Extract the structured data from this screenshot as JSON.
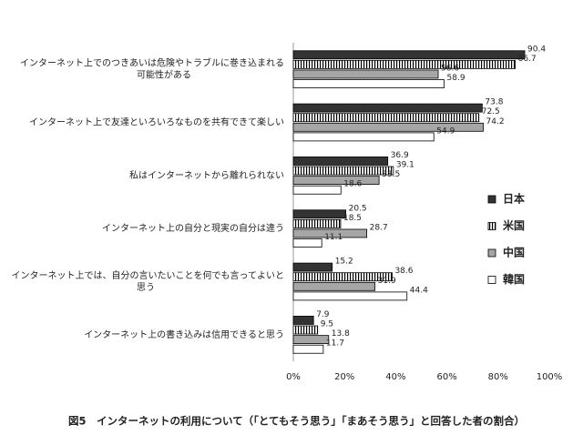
{
  "chart_data": {
    "type": "hbar",
    "title": "図5　インターネットの利用について（「とてもそう思う」「まあそう思う」と回答した者の割合）",
    "categories": [
      "インターネット上でのつきあいは危険やトラブルに巻き込まれる\n可能性がある",
      "インターネット上で友達といろいろなものを共有できて楽しい",
      "私はインターネットから離れられない",
      "インターネット上の自分と現実の自分は違う",
      "インターネット上では、自分の言いたいことを何でも言ってよいと\n思う",
      "インターネット上の書き込みは信用できると思う"
    ],
    "series": [
      {
        "name": "日本",
        "color": "#333333",
        "values": [
          90.4,
          73.8,
          36.9,
          20.5,
          15.2,
          7.9
        ]
      },
      {
        "name": "米国",
        "color": "#ffffff",
        "hatch": "vertical",
        "values": [
          86.7,
          72.5,
          39.1,
          18.5,
          38.6,
          9.5
        ]
      },
      {
        "name": "中国",
        "color": "#a6a6a6",
        "values": [
          56.6,
          74.2,
          33.5,
          28.7,
          31.9,
          13.8
        ]
      },
      {
        "name": "韓国",
        "color": "#ffffff",
        "values": [
          58.9,
          54.9,
          18.6,
          11.1,
          44.4,
          11.7
        ]
      }
    ],
    "xlim": [
      0,
      100
    ],
    "xticks": [
      {
        "value": 0,
        "label": "0%"
      },
      {
        "value": 20,
        "label": "20%"
      },
      {
        "value": 40,
        "label": "40%"
      },
      {
        "value": 60,
        "label": "60%"
      },
      {
        "value": 80,
        "label": "80%"
      },
      {
        "value": 100,
        "label": "100%"
      }
    ],
    "grid": false,
    "legend": "right"
  }
}
